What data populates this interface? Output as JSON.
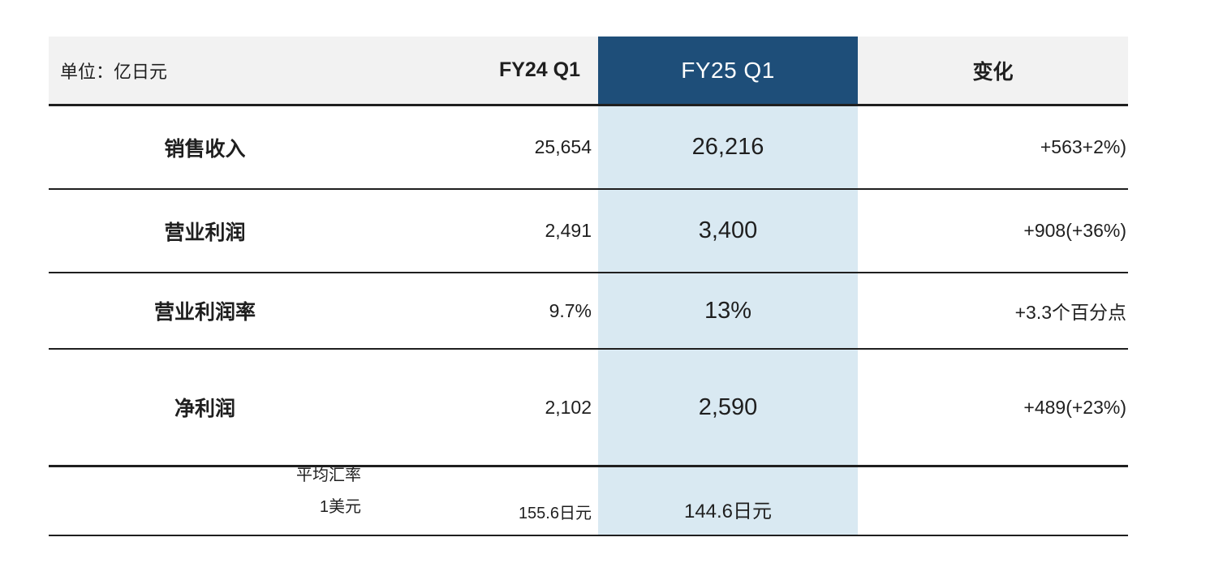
{
  "chart_data": {
    "type": "table",
    "unit_label": "单位：亿日元",
    "columns": {
      "fy24": "FY24 Q1",
      "fy25": "FY25 Q1",
      "change": "变化"
    },
    "rows": [
      {
        "label": "销售收入",
        "fy24": "25,654",
        "fy25": "26,216",
        "change": "+563+2%)"
      },
      {
        "label": "营业利润",
        "fy24": "2,491",
        "fy25": "3,400",
        "change": "+908(+36%)"
      },
      {
        "label": "营业利润率",
        "fy24": "9.7%",
        "fy25": "13%",
        "change": "+3.3个百分点"
      },
      {
        "label": "净利润",
        "fy24": "2,102",
        "fy25": "2,590",
        "change": "+489(+23%)"
      },
      {
        "label_line1": "平均汇率",
        "label_line2": "1美元",
        "fy24": "155.6日元",
        "fy25": "144.6日元",
        "change": ""
      }
    ],
    "colors": {
      "highlight_header_bg": "#1E4E79",
      "highlight_column_bg": "#D9E9F2",
      "header_row_bg": "#F2F2F2",
      "rule_color": "#1F1F1F"
    },
    "layout_hints": {
      "highlighted_column": "FY25 Q1",
      "grid": "horizontal rules only"
    }
  }
}
